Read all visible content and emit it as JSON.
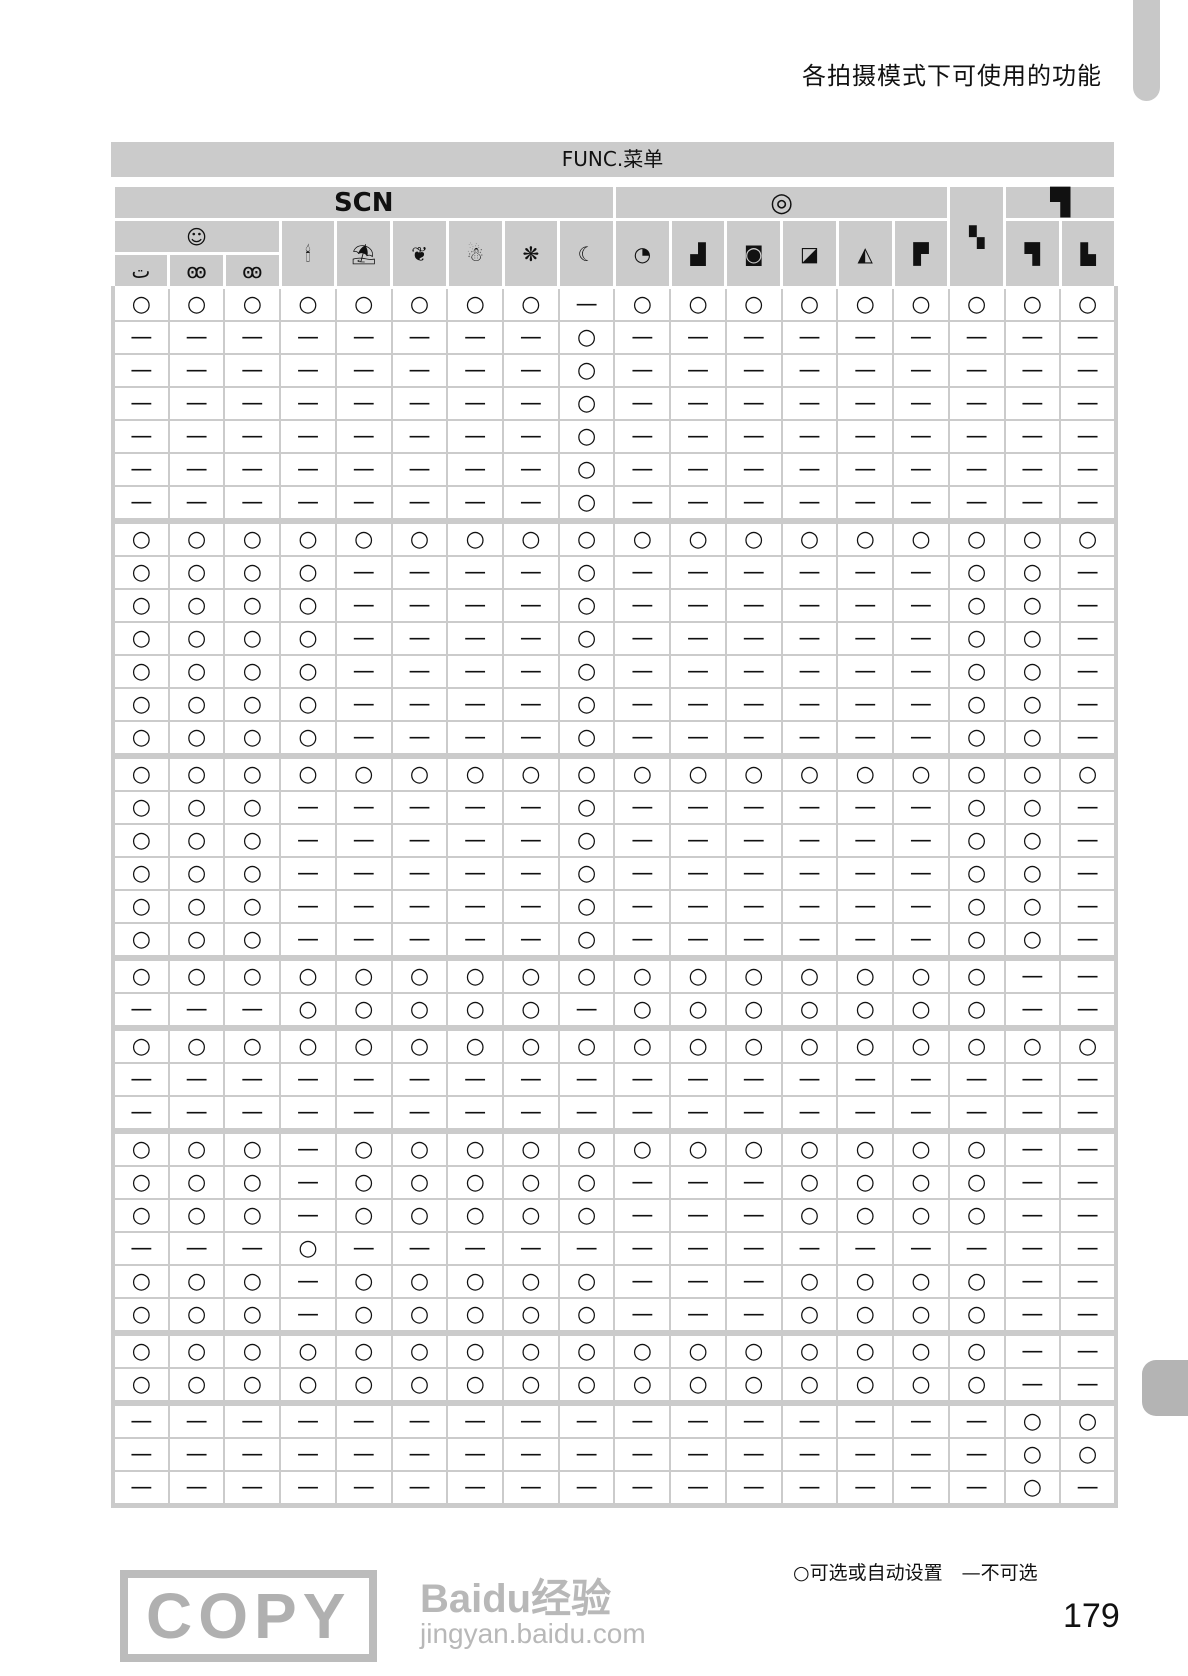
{
  "page_title": "各拍摄模式下可使用的功能",
  "header": {
    "func_menu": "FUNC.菜单",
    "scn_label": "SCN",
    "groups": {
      "filter_icon": "creative-filters-icon",
      "movie_icon": "movie-camera-icon",
      "smart_shutter_icon": "smart-shutter-face-icon",
      "miniature_icon": "discreet-mode-icon"
    },
    "sub_smart_shutter": [
      {
        "icon": "smile-icon",
        "glyph": "ت"
      },
      {
        "icon": "wink-self-timer-icon",
        "glyph": "ꙭ"
      },
      {
        "icon": "face-self-timer-icon",
        "glyph": "ꙭ"
      }
    ],
    "columns": [
      {
        "icon": "low-light-candle-icon",
        "glyph": "🕯"
      },
      {
        "icon": "beach-icon",
        "glyph": "⛱"
      },
      {
        "icon": "foliage-icon",
        "glyph": "❦"
      },
      {
        "icon": "snow-snowman-icon",
        "glyph": "☃"
      },
      {
        "icon": "fireworks-icon",
        "glyph": "❋"
      },
      {
        "icon": "long-shutter-night-icon",
        "glyph": "☾"
      },
      {
        "icon": "fisheye-effect-icon",
        "glyph": "◔"
      },
      {
        "icon": "miniature-effect-icon",
        "glyph": "▟"
      },
      {
        "icon": "toy-camera-icon",
        "glyph": "◙"
      },
      {
        "icon": "monochrome-icon",
        "glyph": "◪"
      },
      {
        "icon": "super-vivid-icon",
        "glyph": "◭"
      },
      {
        "icon": "poster-effect-icon",
        "glyph": "▛"
      }
    ],
    "miniature_glyph": "▚",
    "movie_cols": [
      {
        "icon": "standard-movie-icon",
        "glyph": "▜"
      },
      {
        "icon": "miniature-movie-icon",
        "glyph": "▙"
      }
    ],
    "filter_glyph": "◎",
    "movie_glyph": "▜",
    "smart_shutter_glyph": "☺"
  },
  "rows": [
    [
      "○",
      "○",
      "○",
      "○",
      "○",
      "○",
      "○",
      "○",
      "—",
      "○",
      "○",
      "○",
      "○",
      "○",
      "○",
      "○",
      "○",
      "○"
    ],
    [
      "—",
      "—",
      "—",
      "—",
      "—",
      "—",
      "—",
      "—",
      "○",
      "—",
      "—",
      "—",
      "—",
      "—",
      "—",
      "—",
      "—",
      "—"
    ],
    [
      "—",
      "—",
      "—",
      "—",
      "—",
      "—",
      "—",
      "—",
      "○",
      "—",
      "—",
      "—",
      "—",
      "—",
      "—",
      "—",
      "—",
      "—"
    ],
    [
      "—",
      "—",
      "—",
      "—",
      "—",
      "—",
      "—",
      "—",
      "○",
      "—",
      "—",
      "—",
      "—",
      "—",
      "—",
      "—",
      "—",
      "—"
    ],
    [
      "—",
      "—",
      "—",
      "—",
      "—",
      "—",
      "—",
      "—",
      "○",
      "—",
      "—",
      "—",
      "—",
      "—",
      "—",
      "—",
      "—",
      "—"
    ],
    [
      "—",
      "—",
      "—",
      "—",
      "—",
      "—",
      "—",
      "—",
      "○",
      "—",
      "—",
      "—",
      "—",
      "—",
      "—",
      "—",
      "—",
      "—"
    ],
    [
      "—",
      "—",
      "—",
      "—",
      "—",
      "—",
      "—",
      "—",
      "○",
      "—",
      "—",
      "—",
      "—",
      "—",
      "—",
      "—",
      "—",
      "—"
    ],
    [
      "○",
      "○",
      "○",
      "○",
      "○",
      "○",
      "○",
      "○",
      "○",
      "○",
      "○",
      "○",
      "○",
      "○",
      "○",
      "○",
      "○",
      "○"
    ],
    [
      "○",
      "○",
      "○",
      "○",
      "—",
      "—",
      "—",
      "—",
      "○",
      "—",
      "—",
      "—",
      "—",
      "—",
      "—",
      "○",
      "○",
      "—"
    ],
    [
      "○",
      "○",
      "○",
      "○",
      "—",
      "—",
      "—",
      "—",
      "○",
      "—",
      "—",
      "—",
      "—",
      "—",
      "—",
      "○",
      "○",
      "—"
    ],
    [
      "○",
      "○",
      "○",
      "○",
      "—",
      "—",
      "—",
      "—",
      "○",
      "—",
      "—",
      "—",
      "—",
      "—",
      "—",
      "○",
      "○",
      "—"
    ],
    [
      "○",
      "○",
      "○",
      "○",
      "—",
      "—",
      "—",
      "—",
      "○",
      "—",
      "—",
      "—",
      "—",
      "—",
      "—",
      "○",
      "○",
      "—"
    ],
    [
      "○",
      "○",
      "○",
      "○",
      "—",
      "—",
      "—",
      "—",
      "○",
      "—",
      "—",
      "—",
      "—",
      "—",
      "—",
      "○",
      "○",
      "—"
    ],
    [
      "○",
      "○",
      "○",
      "○",
      "—",
      "—",
      "—",
      "—",
      "○",
      "—",
      "—",
      "—",
      "—",
      "—",
      "—",
      "○",
      "○",
      "—"
    ],
    [
      "○",
      "○",
      "○",
      "○",
      "○",
      "○",
      "○",
      "○",
      "○",
      "○",
      "○",
      "○",
      "○",
      "○",
      "○",
      "○",
      "○",
      "○"
    ],
    [
      "○",
      "○",
      "○",
      "—",
      "—",
      "—",
      "—",
      "—",
      "○",
      "—",
      "—",
      "—",
      "—",
      "—",
      "—",
      "○",
      "○",
      "—"
    ],
    [
      "○",
      "○",
      "○",
      "—",
      "—",
      "—",
      "—",
      "—",
      "○",
      "—",
      "—",
      "—",
      "—",
      "—",
      "—",
      "○",
      "○",
      "—"
    ],
    [
      "○",
      "○",
      "○",
      "—",
      "—",
      "—",
      "—",
      "—",
      "○",
      "—",
      "—",
      "—",
      "—",
      "—",
      "—",
      "○",
      "○",
      "—"
    ],
    [
      "○",
      "○",
      "○",
      "—",
      "—",
      "—",
      "—",
      "—",
      "○",
      "—",
      "—",
      "—",
      "—",
      "—",
      "—",
      "○",
      "○",
      "—"
    ],
    [
      "○",
      "○",
      "○",
      "—",
      "—",
      "—",
      "—",
      "—",
      "○",
      "—",
      "—",
      "—",
      "—",
      "—",
      "—",
      "○",
      "○",
      "—"
    ],
    [
      "○",
      "○",
      "○",
      "○",
      "○",
      "○",
      "○",
      "○",
      "○",
      "○",
      "○",
      "○",
      "○",
      "○",
      "○",
      "○",
      "—",
      "—"
    ],
    [
      "—",
      "—",
      "—",
      "○",
      "○",
      "○",
      "○",
      "○",
      "—",
      "○",
      "○",
      "○",
      "○",
      "○",
      "○",
      "○",
      "—",
      "—"
    ],
    [
      "○",
      "○",
      "○",
      "○",
      "○",
      "○",
      "○",
      "○",
      "○",
      "○",
      "○",
      "○",
      "○",
      "○",
      "○",
      "○",
      "○",
      "○"
    ],
    [
      "—",
      "—",
      "—",
      "—",
      "—",
      "—",
      "—",
      "—",
      "—",
      "—",
      "—",
      "—",
      "—",
      "—",
      "—",
      "—",
      "—",
      "—"
    ],
    [
      "—",
      "—",
      "—",
      "—",
      "—",
      "—",
      "—",
      "—",
      "—",
      "—",
      "—",
      "—",
      "—",
      "—",
      "—",
      "—",
      "—",
      "—"
    ],
    [
      "○",
      "○",
      "○",
      "—",
      "○",
      "○",
      "○",
      "○",
      "○",
      "○",
      "○",
      "○",
      "○",
      "○",
      "○",
      "○",
      "—",
      "—"
    ],
    [
      "○",
      "○",
      "○",
      "—",
      "○",
      "○",
      "○",
      "○",
      "○",
      "—",
      "—",
      "—",
      "○",
      "○",
      "○",
      "○",
      "—",
      "—"
    ],
    [
      "○",
      "○",
      "○",
      "—",
      "○",
      "○",
      "○",
      "○",
      "○",
      "—",
      "—",
      "—",
      "○",
      "○",
      "○",
      "○",
      "—",
      "—"
    ],
    [
      "—",
      "—",
      "—",
      "○",
      "—",
      "—",
      "—",
      "—",
      "—",
      "—",
      "—",
      "—",
      "—",
      "—",
      "—",
      "—",
      "—",
      "—"
    ],
    [
      "○",
      "○",
      "○",
      "—",
      "○",
      "○",
      "○",
      "○",
      "○",
      "—",
      "—",
      "—",
      "○",
      "○",
      "○",
      "○",
      "—",
      "—"
    ],
    [
      "○",
      "○",
      "○",
      "—",
      "○",
      "○",
      "○",
      "○",
      "○",
      "—",
      "—",
      "—",
      "○",
      "○",
      "○",
      "○",
      "—",
      "—"
    ],
    [
      "○",
      "○",
      "○",
      "○",
      "○",
      "○",
      "○",
      "○",
      "○",
      "○",
      "○",
      "○",
      "○",
      "○",
      "○",
      "○",
      "—",
      "—"
    ],
    [
      "○",
      "○",
      "○",
      "○",
      "○",
      "○",
      "○",
      "○",
      "○",
      "○",
      "○",
      "○",
      "○",
      "○",
      "○",
      "○",
      "—",
      "—"
    ],
    [
      "—",
      "—",
      "—",
      "—",
      "—",
      "—",
      "—",
      "—",
      "—",
      "—",
      "—",
      "—",
      "—",
      "—",
      "—",
      "—",
      "○",
      "○"
    ],
    [
      "—",
      "—",
      "—",
      "—",
      "—",
      "—",
      "—",
      "—",
      "—",
      "—",
      "—",
      "—",
      "—",
      "—",
      "—",
      "—",
      "○",
      "○"
    ],
    [
      "—",
      "—",
      "—",
      "—",
      "—",
      "—",
      "—",
      "—",
      "—",
      "—",
      "—",
      "—",
      "—",
      "—",
      "—",
      "—",
      "○",
      "—"
    ]
  ],
  "group_starts": [
    7,
    14,
    20,
    22,
    25,
    31,
    33
  ],
  "legend": "○可选或自动设置　—不可选",
  "page_number": "179",
  "watermarks": {
    "stamp": "COPY",
    "baidu": "Baidu经验",
    "baidu_url": "jingyan.baidu.com"
  },
  "colors": {
    "header_gray": "#cbcbcb",
    "tab_gray": "#b4b4b4"
  }
}
